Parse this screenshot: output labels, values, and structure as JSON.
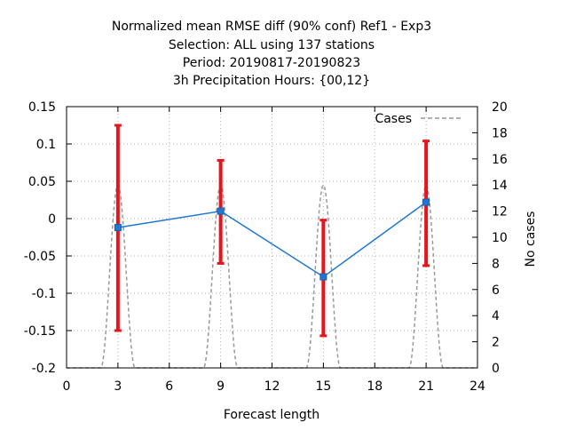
{
  "chart_data": {
    "type": "line",
    "title_lines": [
      "Normalized mean RMSE diff (90% conf) Ref1 - Exp3",
      "Selection: ALL using    137 stations",
      "Period: 20190817-20190823",
      "3h Precipitation    Hours: {00,12}"
    ],
    "xlabel": "Forecast length",
    "ylabel": "",
    "y2label": "No cases",
    "xlim": [
      0,
      24
    ],
    "ylim": [
      -0.2,
      0.15
    ],
    "y2lim": [
      0,
      20
    ],
    "x_ticks": [
      0,
      3,
      6,
      9,
      12,
      15,
      18,
      21,
      24
    ],
    "y_ticks": [
      -0.2,
      -0.15,
      -0.1,
      -0.05,
      0,
      0.05,
      0.1,
      0.15
    ],
    "y2_ticks": [
      0,
      2,
      4,
      6,
      8,
      10,
      12,
      14,
      16,
      18,
      20
    ],
    "x_tick_labels": [
      "0",
      "3",
      "6",
      "9",
      "12",
      "15",
      "18",
      "21",
      "24"
    ],
    "y_tick_labels": [
      "-0.2",
      "-0.15",
      "-0.1",
      "-0.05",
      "0",
      "0.05",
      "0.1",
      "0.15"
    ],
    "y2_tick_labels": [
      "0",
      "2",
      "4",
      "6",
      "8",
      "10",
      "12",
      "14",
      "16",
      "18",
      "20"
    ],
    "grid": true,
    "legend": {
      "position": "top-right",
      "entries": [
        "Cases"
      ]
    },
    "series": [
      {
        "kind": "line",
        "x": [
          3,
          9,
          15,
          21
        ],
        "y": [
          -0.012,
          0.01,
          -0.078,
          0.022
        ],
        "color": "#1f78d4"
      },
      {
        "kind": "errorbar",
        "x": [
          3,
          9,
          15,
          21
        ],
        "lower": [
          -0.15,
          -0.06,
          -0.157,
          -0.063
        ],
        "upper": [
          0.125,
          0.078,
          -0.002,
          0.104
        ],
        "color": "#e8141c"
      },
      {
        "name": "Cases",
        "kind": "line",
        "axis": "y2",
        "dashed": true,
        "color": "#999999",
        "x": [
          0,
          1,
          2,
          3,
          4,
          5,
          6,
          7,
          8,
          9,
          10,
          11,
          12,
          13,
          14,
          15,
          16,
          17,
          18,
          19,
          20,
          21,
          22,
          23,
          24
        ],
        "y": [
          0,
          0,
          0,
          14,
          0,
          0,
          0,
          0,
          0,
          14,
          0,
          0,
          0,
          0,
          0,
          14,
          0,
          0,
          0,
          0,
          0,
          14,
          0,
          0,
          0
        ]
      }
    ]
  }
}
